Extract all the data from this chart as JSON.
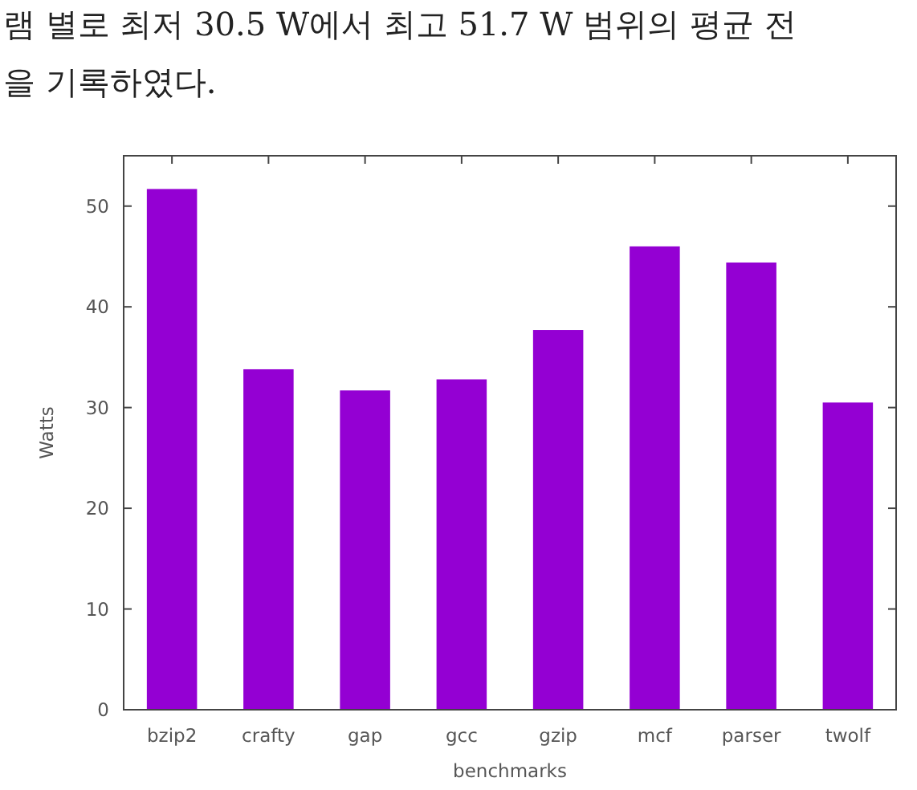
{
  "chart_data": {
    "type": "bar",
    "xlabel": "benchmarks",
    "ylabel": "Watts",
    "annotations": [
      "램 별로 최저 30.5 W에서 최고 51.7 W 범위의 평균 전",
      "을 기록하였다."
    ],
    "categories": [
      "bzip2",
      "crafty",
      "gap",
      "gcc",
      "gzip",
      "mcf",
      "parser",
      "twolf"
    ],
    "values": [
      51.7,
      33.8,
      31.7,
      32.8,
      37.7,
      46.0,
      44.4,
      30.5
    ],
    "color": "#9400d3",
    "ylim": [
      0,
      55
    ],
    "yticks": [
      0,
      10,
      20,
      30,
      40,
      50
    ]
  }
}
